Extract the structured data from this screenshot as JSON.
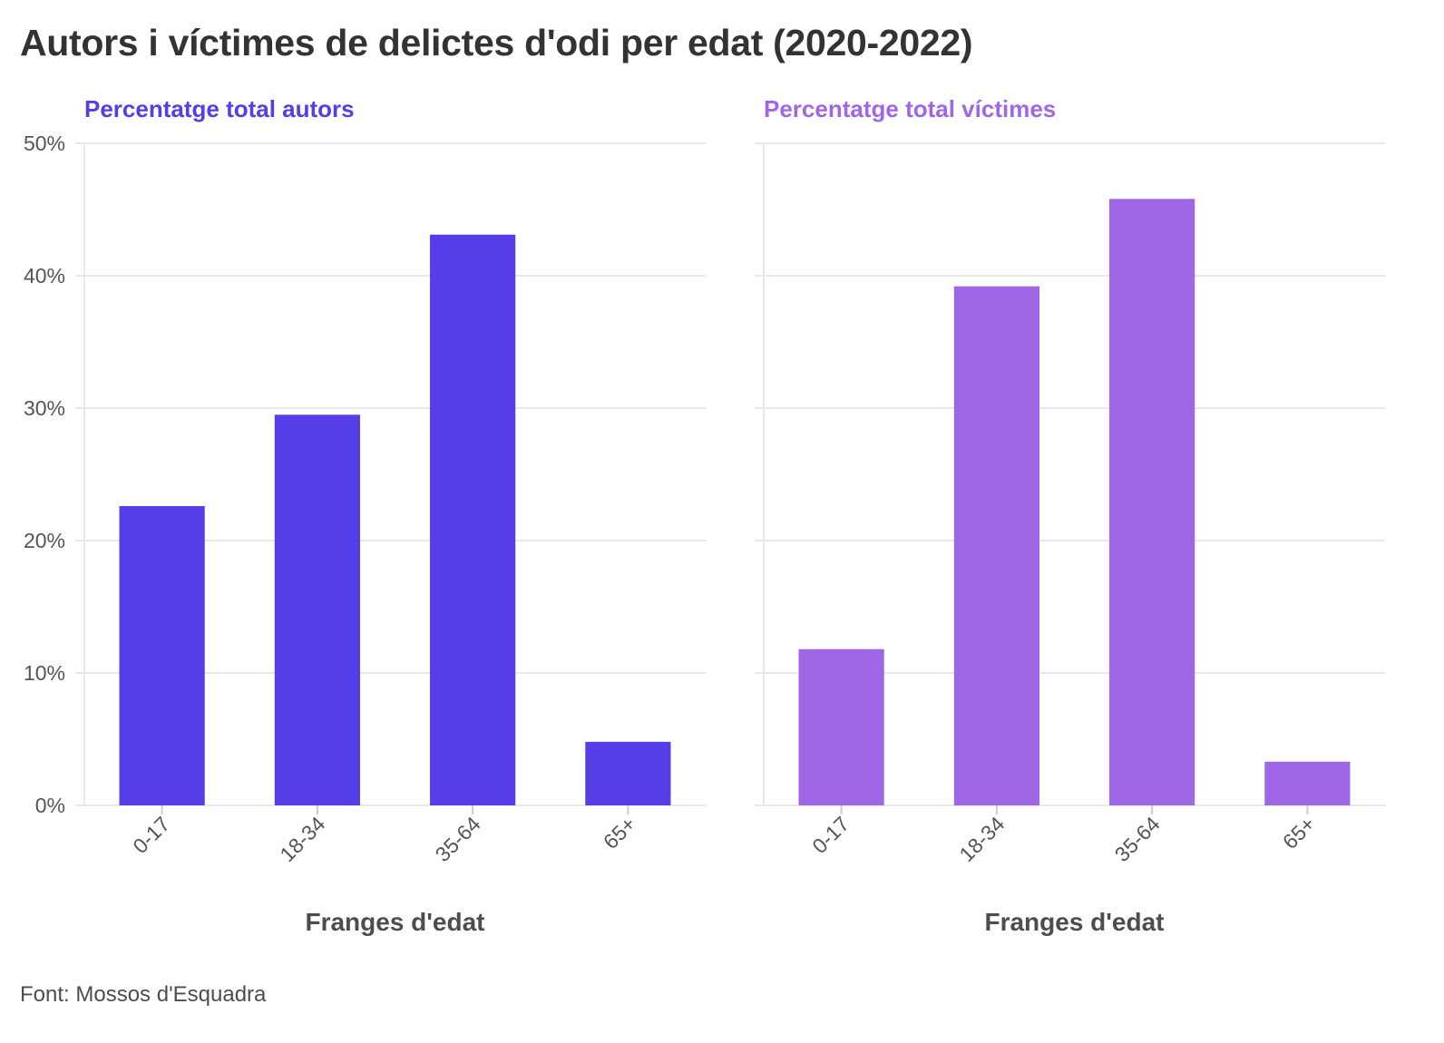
{
  "header": {
    "title": "Autors i víctimes de delictes d'odi per edat (2020-2022)"
  },
  "source": "Font: Mossos d'Esquadra",
  "colors": {
    "autors": "#553ee8",
    "victimes": "#9f66e6",
    "grid": "#e8e8e8",
    "text": "#333333"
  },
  "chart_data": [
    {
      "type": "bar",
      "title": "Percentatge total autors",
      "xlabel": "Franges d'edat",
      "ylabel": "",
      "categories": [
        "0-17",
        "18-34",
        "35-64",
        "65+"
      ],
      "values": [
        22.6,
        29.5,
        43.1,
        4.8
      ],
      "ylim": [
        0,
        50
      ],
      "yticks": [
        "0%",
        "10%",
        "20%",
        "30%",
        "40%",
        "50%"
      ],
      "grid": true
    },
    {
      "type": "bar",
      "title": "Percentatge total víctimes",
      "xlabel": "Franges d'edat",
      "ylabel": "",
      "categories": [
        "0-17",
        "18-34",
        "35-64",
        "65+"
      ],
      "values": [
        11.8,
        39.2,
        45.8,
        3.3
      ],
      "ylim": [
        0,
        50
      ],
      "yticks": [
        "0%",
        "10%",
        "20%",
        "30%",
        "40%",
        "50%"
      ],
      "grid": true
    }
  ]
}
